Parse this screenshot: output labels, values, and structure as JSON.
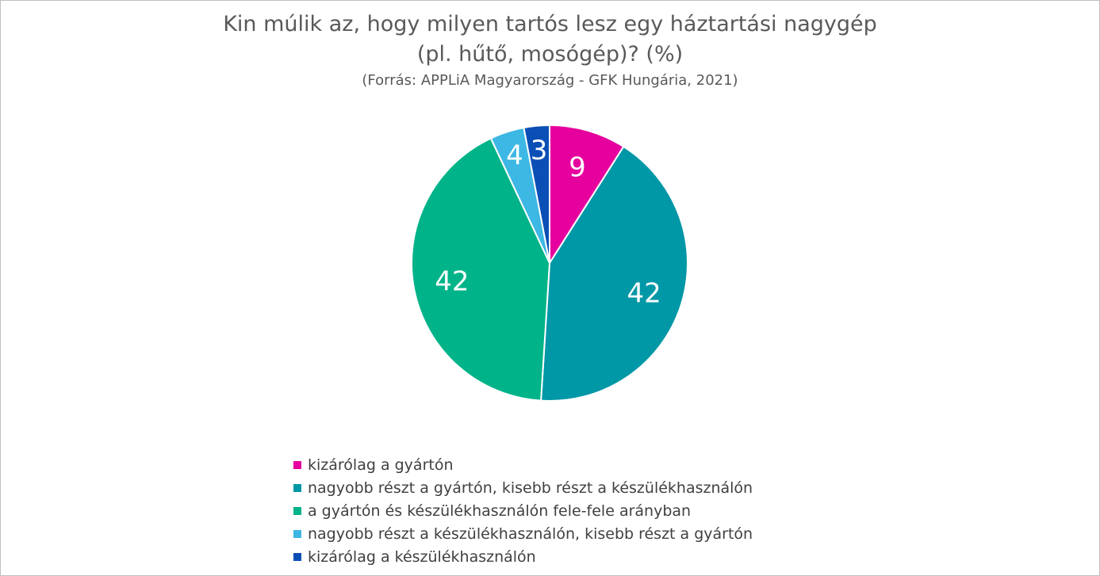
{
  "chart_data": {
    "type": "pie",
    "title_line1": "Kin múlik az, hogy milyen tartós lesz egy háztartási nagygép",
    "title_line2": "(pl. hűtő, mosógép)? (%)",
    "subtitle": "(Forrás: APPLiA Magyarország - GFK Hungária, 2021)",
    "legend_position": "bottom",
    "slices": [
      {
        "label": "kizárólag a gyártón",
        "value": 9,
        "display": "9",
        "color": "#e6009e"
      },
      {
        "label": "nagyobb részt a gyártón, kisebb részt a készülékhasználón",
        "value": 42,
        "display": "42",
        "color": "#0097a7"
      },
      {
        "label": "a gyártón és készülékhasználón fele-fele arányban",
        "value": 42,
        "display": "42",
        "color": "#00b388"
      },
      {
        "label": "nagyobb részt a készülékhasználón, kisebb részt a gyártón",
        "value": 4,
        "display": "4",
        "color": "#3db7e4"
      },
      {
        "label": "kizárólag a készülékhasználón",
        "value": 3,
        "display": "3",
        "color": "#0a4fb5"
      }
    ]
  }
}
